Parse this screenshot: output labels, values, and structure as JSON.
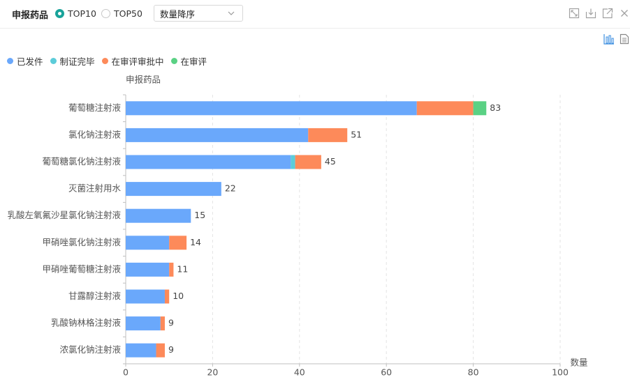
{
  "toolbar": {
    "title": "申报药品",
    "radio_options": [
      {
        "label": "TOP10",
        "selected": true
      },
      {
        "label": "TOP50",
        "selected": false
      }
    ],
    "sort_select": {
      "value": "数量降序"
    },
    "icons": [
      "expand-icon",
      "download-icon",
      "external-link-icon",
      "close-icon"
    ]
  },
  "side_tools": [
    "bar-chart-icon",
    "table-view-icon"
  ],
  "colors": {
    "accent": "#19a39a",
    "series": [
      "#6aa8fb",
      "#5cccd9",
      "#fd8a5a",
      "#5ad184"
    ]
  },
  "chart_data": {
    "type": "bar",
    "orientation": "horizontal",
    "stacked": true,
    "ylabel": "申报药品",
    "xlabel": "数量",
    "xlim": [
      0,
      100
    ],
    "xticks": [
      0,
      20,
      40,
      60,
      80,
      100
    ],
    "grid": "vertical-dashed",
    "legend_position": "top-left",
    "categories": [
      "葡萄糖注射液",
      "氯化钠注射液",
      "葡萄糖氯化钠注射液",
      "灭菌注射用水",
      "乳酸左氧氟沙星氯化钠注射液",
      "甲硝唑氯化钠注射液",
      "甲硝唑葡萄糖注射液",
      "甘露醇注射液",
      "乳酸钠林格注射液",
      "浓氯化钠注射液"
    ],
    "series": [
      {
        "name": "已发件",
        "values": [
          67,
          42,
          38,
          22,
          15,
          10,
          10,
          9,
          8,
          7
        ]
      },
      {
        "name": "制证完毕",
        "values": [
          0,
          0,
          1,
          0,
          0,
          0,
          0,
          0,
          0,
          0
        ]
      },
      {
        "name": "在审评审批中",
        "values": [
          13,
          9,
          6,
          0,
          0,
          4,
          1,
          1,
          1,
          2
        ]
      },
      {
        "name": "在审评",
        "values": [
          3,
          0,
          0,
          0,
          0,
          0,
          0,
          0,
          0,
          0
        ]
      }
    ],
    "totals": [
      83,
      51,
      45,
      22,
      15,
      14,
      11,
      10,
      9,
      9
    ]
  }
}
